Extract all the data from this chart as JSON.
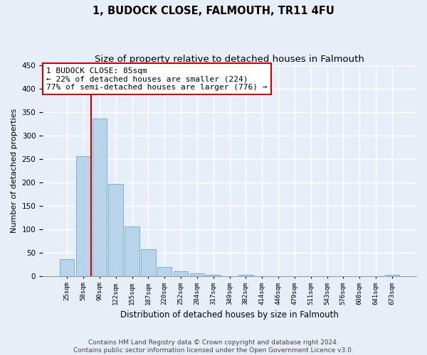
{
  "title": "1, BUDOCK CLOSE, FALMOUTH, TR11 4FU",
  "subtitle": "Size of property relative to detached houses in Falmouth",
  "xlabel": "Distribution of detached houses by size in Falmouth",
  "ylabel": "Number of detached properties",
  "bar_labels": [
    "25sqm",
    "58sqm",
    "90sqm",
    "122sqm",
    "155sqm",
    "187sqm",
    "220sqm",
    "252sqm",
    "284sqm",
    "317sqm",
    "349sqm",
    "382sqm",
    "414sqm",
    "446sqm",
    "479sqm",
    "511sqm",
    "543sqm",
    "576sqm",
    "608sqm",
    "641sqm",
    "673sqm"
  ],
  "bar_values": [
    36,
    256,
    336,
    197,
    105,
    57,
    20,
    11,
    5,
    2,
    0,
    2,
    0,
    0,
    0,
    0,
    0,
    0,
    0,
    0,
    2
  ],
  "bar_color": "#b8d4ea",
  "bar_edge_color": "#7ab0d4",
  "vline_color": "#cc0000",
  "annotation_text": "1 BUDOCK CLOSE: 85sqm\n← 22% of detached houses are smaller (224)\n77% of semi-detached houses are larger (776) →",
  "annotation_box_color": "#ffffff",
  "annotation_box_edge_color": "#cc0000",
  "ylim": [
    0,
    450
  ],
  "yticks": [
    0,
    50,
    100,
    150,
    200,
    250,
    300,
    350,
    400,
    450
  ],
  "footer_text": "Contains HM Land Registry data © Crown copyright and database right 2024.\nContains public sector information licensed under the Open Government Licence v3.0.",
  "background_color": "#e8eef8",
  "grid_color": "#ffffff",
  "title_fontsize": 10.5,
  "subtitle_fontsize": 9.5,
  "annotation_fontsize": 8,
  "footer_fontsize": 6.5
}
